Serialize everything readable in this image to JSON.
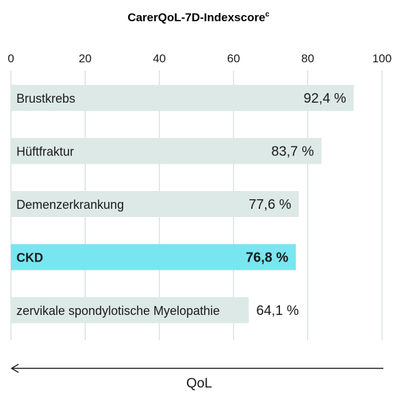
{
  "chart_data": {
    "type": "bar",
    "orientation": "horizontal",
    "title": "CarerQoL-7D-Indexscore",
    "title_superscript": "c",
    "xlim": [
      0,
      100
    ],
    "x_ticks": [
      "0",
      "20",
      "40",
      "60",
      "80",
      "100"
    ],
    "grid": true,
    "categories": [
      "Brustkrebs",
      "Hüftfraktur",
      "Demenzerkrankung",
      "CKD",
      "zervikale spondylotische Myelopathie"
    ],
    "values": [
      92.4,
      83.7,
      77.6,
      76.8,
      64.1
    ],
    "value_labels": [
      "92,4 %",
      "83,7 %",
      "77,6 %",
      "76,8 %",
      "64,1 %"
    ],
    "highlight_index": 3,
    "bar_color": "#dde9e6",
    "highlight_color": "#78e6f0",
    "grid_color": "#c8d3cf",
    "axis_note": "QoL",
    "arrow_direction": "left"
  }
}
